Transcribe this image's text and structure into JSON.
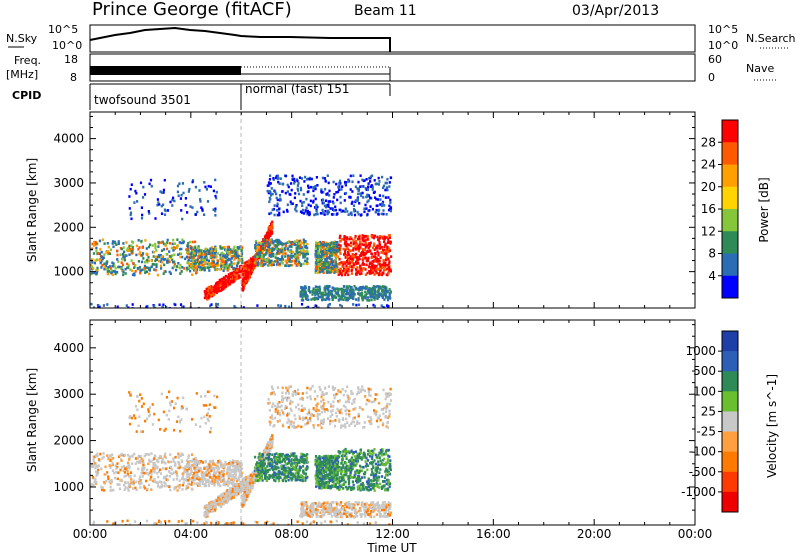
{
  "header": {
    "station": "Prince George (fitACF)",
    "beam": "Beam 11",
    "date": "03/Apr/2013"
  },
  "strip_panels": {
    "nsky": {
      "label": "N.Sky",
      "ticks": [
        "10^5",
        "10^0"
      ]
    },
    "nsearch": {
      "label": "N.Search",
      "ticks": [
        "10^5",
        "10^0"
      ]
    },
    "freq": {
      "label_top": "Freq.",
      "label_unit": "[MHz]",
      "ticks": [
        "18",
        "8"
      ]
    },
    "nave": {
      "label": "Nave",
      "ticks": [
        "60",
        "0"
      ]
    },
    "cpid": {
      "label": "CPID",
      "programs": [
        "twofsound 3501",
        "normal (fast) 151"
      ]
    }
  },
  "x_axis": {
    "title": "Time UT",
    "ticks": [
      "00:00",
      "04:00",
      "08:00",
      "12:00",
      "16:00",
      "20:00",
      "00:00"
    ]
  },
  "chart_data": [
    {
      "type": "heatmap",
      "ylabel": "Slant Range [km]",
      "xlim_hours": [
        0,
        24
      ],
      "ylim": [
        180,
        4600
      ],
      "yticks": [
        1000,
        2000,
        3000,
        4000
      ],
      "data_extent_hours": [
        0,
        12
      ],
      "colorbar": {
        "label": "Power [dB]",
        "ticks": [
          "28",
          "24",
          "20",
          "16",
          "12",
          "8",
          "4"
        ],
        "colors": [
          "#ff0000",
          "#ff5a00",
          "#ff9f00",
          "#ffd400",
          "#86c63a",
          "#2e8b57",
          "#2a6db5",
          "#0000ff"
        ]
      }
    },
    {
      "type": "heatmap",
      "ylabel": "Slant Range [km]",
      "xlim_hours": [
        0,
        24
      ],
      "ylim": [
        180,
        4600
      ],
      "yticks": [
        1000,
        2000,
        3000,
        4000
      ],
      "data_extent_hours": [
        0,
        12
      ],
      "colorbar": {
        "label": "Velocity [m s^-1]",
        "ticks": [
          "1000",
          "500",
          "100",
          "25",
          "-25",
          "-100",
          "-500",
          "-1000"
        ],
        "colors": [
          "#1f3fa8",
          "#2e5fb8",
          "#2e8b57",
          "#6abf30",
          "#c8c8c8",
          "#ffa040",
          "#ff7a00",
          "#ff3a00",
          "#ee0000"
        ]
      }
    }
  ]
}
